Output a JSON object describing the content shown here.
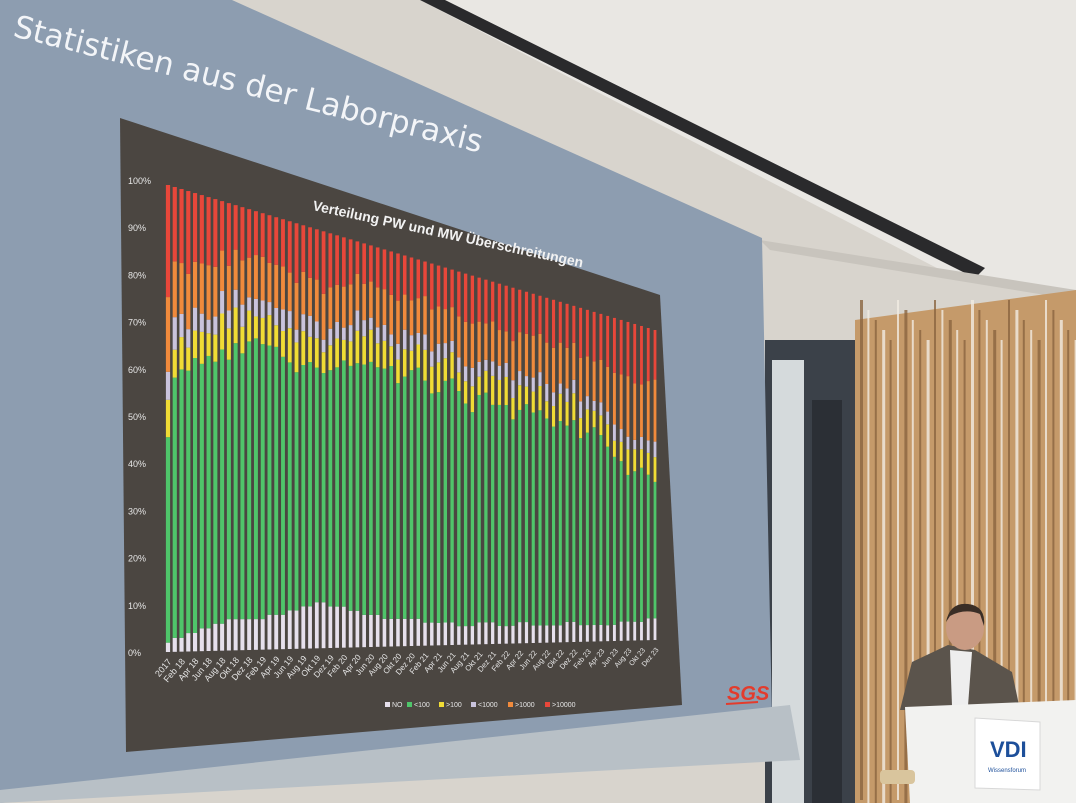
{
  "slide": {
    "title": "Statistiken aus der Laborpraxis",
    "logo_text": "SGS"
  },
  "podium": {
    "logo_text": "VDI",
    "logo_subtext": "Wissensforum"
  },
  "colors": {
    "slide_bg": "#8d9db0",
    "chart_bg": "#4b4641",
    "NO": "#e6e0ec",
    "<100": "#4fc56a",
    ">100": "#f0dc35",
    "<1000": "#c9c3dc",
    ">1000": "#f08a3c",
    ">10000": "#e8473a"
  },
  "chart_data": {
    "type": "bar",
    "stacked": true,
    "normalized_percent": true,
    "title": "Verteilung PW und MW Überschreitungen",
    "ylim": [
      0,
      100
    ],
    "yticks": [
      "0%",
      "10%",
      "20%",
      "30%",
      "40%",
      "50%",
      "60%",
      "70%",
      "80%",
      "90%",
      "100%"
    ],
    "xtick_labels": [
      "2017",
      "Feb 18",
      "Apr 18",
      "Jun 18",
      "Aug 18",
      "Okt 18",
      "Dez 18",
      "Feb 19",
      "Apr 19",
      "Jun 19",
      "Aug 19",
      "Okt 19",
      "Dez 19",
      "Feb 20",
      "Apr 20",
      "Jun 20",
      "Aug 20",
      "Okt 20",
      "Dez 20",
      "Feb 21",
      "Apr 21",
      "Jun 21",
      "Aug 21",
      "Okt 21",
      "Dez 21",
      "Feb 22",
      "Apr 22",
      "Jun 22",
      "Aug 22",
      "Okt 22",
      "Dez 22",
      "Feb 23",
      "Apr 23",
      "Jun 23",
      "Aug 23",
      "Okt 23",
      "Dez 23"
    ],
    "legend_position": "bottom",
    "series": [
      {
        "name": "NO",
        "values": [
          2,
          3,
          3,
          4,
          4,
          5,
          5,
          6,
          6,
          7,
          7,
          7,
          7,
          7,
          7,
          8,
          8,
          8,
          9,
          9,
          10,
          10,
          11,
          11,
          10,
          10,
          10,
          9,
          9,
          8,
          8,
          8,
          7,
          7,
          7,
          7,
          7,
          7,
          6,
          6,
          6,
          6,
          6,
          5,
          5,
          5,
          6,
          6,
          6,
          5,
          5,
          5,
          6,
          6,
          5,
          5,
          5,
          5,
          5,
          6,
          6,
          5,
          5,
          5,
          5,
          5,
          5,
          6,
          6,
          6,
          6,
          7,
          7
        ]
      },
      {
        "name": "<100",
        "values": [
          44,
          56,
          58,
          57,
          60,
          58,
          60,
          58,
          61,
          58,
          62,
          60,
          63,
          64,
          63,
          62,
          62,
          60,
          58,
          56,
          57,
          58,
          56,
          55,
          57,
          58,
          60,
          60,
          61,
          62,
          63,
          62,
          63,
          64,
          60,
          62,
          64,
          65,
          63,
          60,
          62,
          64,
          65,
          63,
          60,
          58,
          62,
          63,
          60,
          62,
          63,
          58,
          60,
          62,
          61,
          62,
          60,
          58,
          60,
          58,
          60,
          56,
          58,
          60,
          58,
          56,
          52,
          50,
          46,
          48,
          50,
          46,
          44
        ]
      },
      {
        "name": ">100",
        "values": [
          8,
          6,
          7,
          5,
          6,
          7,
          5,
          6,
          8,
          7,
          8,
          6,
          7,
          5,
          6,
          7,
          5,
          6,
          8,
          7,
          8,
          6,
          7,
          5,
          6,
          7,
          5,
          6,
          8,
          7,
          8,
          6,
          7,
          5,
          6,
          7,
          5,
          6,
          8,
          7,
          8,
          6,
          7,
          5,
          6,
          7,
          5,
          6,
          8,
          7,
          8,
          6,
          7,
          5,
          6,
          7,
          5,
          6,
          8,
          7,
          8,
          6,
          7,
          5,
          6,
          7,
          5,
          6,
          8,
          7,
          6,
          7,
          8
        ]
      },
      {
        "name": "<1000",
        "values": [
          6,
          7,
          5,
          4,
          5,
          4,
          3,
          4,
          5,
          4,
          4,
          5,
          3,
          4,
          4,
          3,
          4,
          5,
          4,
          3,
          4,
          5,
          4,
          3,
          4,
          4,
          3,
          4,
          5,
          4,
          3,
          4,
          4,
          3,
          4,
          5,
          4,
          3,
          4,
          4,
          5,
          4,
          3,
          4,
          4,
          5,
          4,
          3,
          4,
          4,
          4,
          5,
          4,
          3,
          4,
          4,
          5,
          4,
          3,
          4,
          4,
          5,
          4,
          3,
          4,
          4,
          5,
          4,
          4,
          3,
          4,
          4,
          5
        ]
      },
      {
        "name": ">1000",
        "values": [
          16,
          12,
          11,
          12,
          10,
          11,
          12,
          11,
          9,
          10,
          9,
          10,
          9,
          10,
          10,
          9,
          10,
          10,
          9,
          11,
          10,
          9,
          10,
          11,
          10,
          9,
          10,
          10,
          9,
          9,
          9,
          10,
          9,
          10,
          11,
          9,
          9,
          9,
          10,
          11,
          10,
          9,
          9,
          11,
          12,
          12,
          11,
          10,
          11,
          10,
          9,
          11,
          11,
          12,
          12,
          11,
          12,
          13,
          12,
          12,
          11,
          13,
          12,
          12,
          13,
          14,
          16,
          17,
          19,
          18,
          17,
          19,
          20
        ]
      },
      {
        "name": ">10000",
        "values": [
          24,
          16,
          16,
          18,
          15,
          15,
          15,
          15,
          11,
          14,
          10,
          12,
          11,
          10,
          10,
          11,
          11,
          11,
          12,
          14,
          11,
          12,
          12,
          15,
          13,
          12,
          12,
          11,
          8,
          10,
          9,
          10,
          10,
          11,
          12,
          10,
          11,
          10,
          9,
          12,
          11,
          11,
          10,
          12,
          13,
          13,
          12,
          12,
          11,
          13,
          13,
          15,
          12,
          12,
          12,
          11,
          13,
          14,
          12,
          13,
          11,
          15,
          14,
          15,
          14,
          16,
          17,
          17,
          17,
          19,
          19,
          17,
          16
        ]
      }
    ]
  }
}
